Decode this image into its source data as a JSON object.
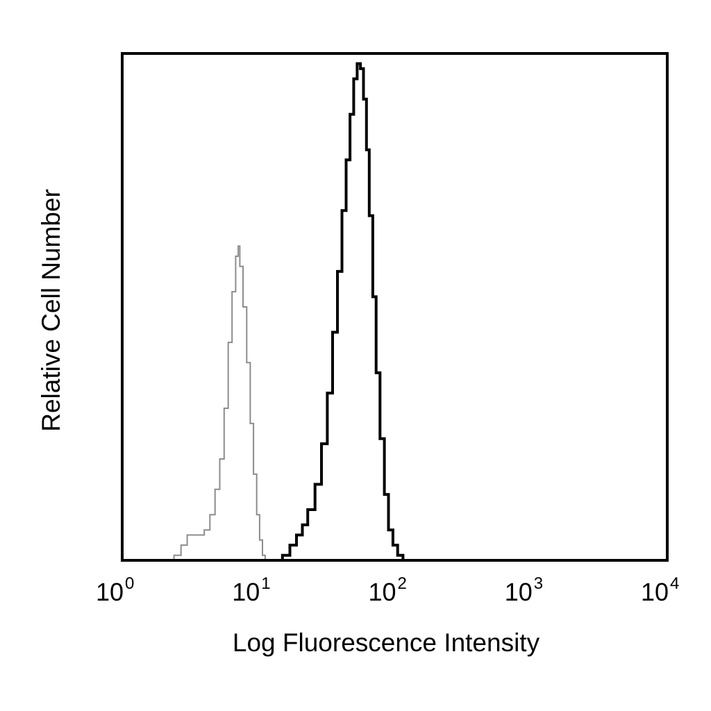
{
  "chart_data": {
    "type": "line",
    "title": "",
    "xlabel": "Log Fluorescence Intensity",
    "ylabel": "Relative Cell Number",
    "x_scale": "log",
    "xlim": [
      1,
      10000
    ],
    "ylim": [
      0,
      100
    ],
    "grid": false,
    "legend": "none",
    "x_ticks": [
      {
        "base": "10",
        "exp": "0",
        "value": 1
      },
      {
        "base": "10",
        "exp": "1",
        "value": 10
      },
      {
        "base": "10",
        "exp": "2",
        "value": 100
      },
      {
        "base": "10",
        "exp": "3",
        "value": 1000
      },
      {
        "base": "10",
        "exp": "4",
        "value": 10000
      }
    ],
    "series": [
      {
        "color": "#8c8c8c",
        "style": "thin",
        "points": [
          [
            2.1,
            0
          ],
          [
            2.4,
            1
          ],
          [
            2.7,
            3
          ],
          [
            3.0,
            5
          ],
          [
            3.3,
            5
          ],
          [
            3.6,
            5
          ],
          [
            4.0,
            6
          ],
          [
            4.4,
            9
          ],
          [
            4.8,
            14
          ],
          [
            5.2,
            20
          ],
          [
            5.6,
            30
          ],
          [
            6.0,
            43
          ],
          [
            6.4,
            53
          ],
          [
            6.8,
            60
          ],
          [
            7.1,
            62
          ],
          [
            7.3,
            58
          ],
          [
            7.7,
            50
          ],
          [
            8.2,
            39
          ],
          [
            8.7,
            27
          ],
          [
            9.2,
            17
          ],
          [
            9.7,
            9
          ],
          [
            10.2,
            4
          ],
          [
            10.7,
            1
          ],
          [
            11.2,
            0
          ]
        ]
      },
      {
        "color": "#000000",
        "style": "thick",
        "points": [
          [
            13.5,
            0
          ],
          [
            15,
            1
          ],
          [
            17,
            3
          ],
          [
            19,
            5
          ],
          [
            21,
            7
          ],
          [
            23,
            10
          ],
          [
            26,
            15
          ],
          [
            29,
            23
          ],
          [
            32,
            33
          ],
          [
            35,
            45
          ],
          [
            38,
            57
          ],
          [
            41,
            69
          ],
          [
            44,
            79
          ],
          [
            47,
            88
          ],
          [
            50,
            95
          ],
          [
            53,
            98
          ],
          [
            56,
            97
          ],
          [
            59,
            91
          ],
          [
            62,
            81
          ],
          [
            65,
            68
          ],
          [
            69,
            52
          ],
          [
            73,
            37
          ],
          [
            78,
            24
          ],
          [
            84,
            13
          ],
          [
            90,
            6
          ],
          [
            97,
            3
          ],
          [
            105,
            1
          ],
          [
            115,
            0
          ],
          [
            125,
            0
          ]
        ]
      }
    ]
  }
}
